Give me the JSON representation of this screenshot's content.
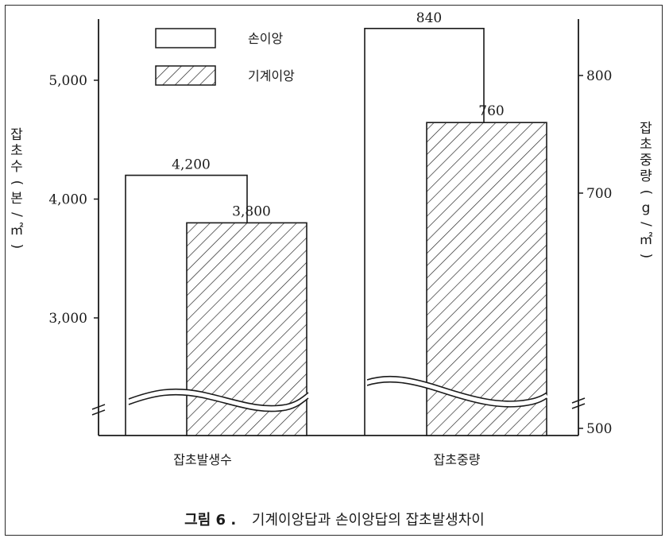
{
  "chart_data": {
    "type": "bar",
    "categories": [
      "잡초발생수",
      "잡초중량"
    ],
    "series": [
      {
        "name": "손이앙",
        "style": "open",
        "values": [
          4200,
          840
        ]
      },
      {
        "name": "기계이앙",
        "style": "hatched",
        "values": [
          3800,
          760
        ]
      }
    ],
    "value_labels": {
      "손이앙": [
        "4,200",
        "840"
      ],
      "기계이앙": [
        "3,800",
        "760"
      ]
    },
    "left_axis": {
      "label": "잡초수(본/㎡)",
      "ticks": [
        3000,
        4000,
        5000
      ],
      "tick_labels": [
        "3,000",
        "4,000",
        "5,000"
      ],
      "axis_break": true
    },
    "right_axis": {
      "label": "잡초중량(g/㎡)",
      "ticks": [
        500,
        700,
        800
      ],
      "tick_labels": [
        "500",
        "700",
        "800"
      ],
      "axis_break": true
    },
    "grid": false,
    "legend_position": "top-left",
    "bar_color": "#1a1a1a"
  },
  "caption": {
    "number": "그림 6 .",
    "text": "기계이앙답과 손이앙답의 잡초발생차이"
  }
}
